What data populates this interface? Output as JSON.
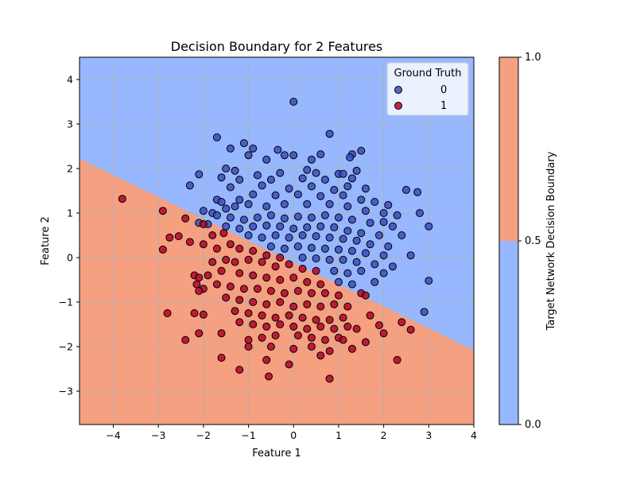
{
  "chart_data": {
    "type": "scatter",
    "title": "Decision Boundary for 2 Features",
    "xlabel": "Feature 1",
    "ylabel": "Feature 2",
    "xlim": [
      -4.75,
      4.0
    ],
    "ylim": [
      -3.75,
      4.5
    ],
    "x_ticks": [
      -4,
      -3,
      -2,
      -1,
      0,
      1,
      2,
      3,
      4
    ],
    "y_ticks": [
      -3,
      -2,
      -1,
      0,
      1,
      2,
      3,
      4
    ],
    "grid": true,
    "legend": {
      "title": "Ground Truth",
      "position": "top-right",
      "entries": [
        {
          "label": "0",
          "color": "#3b4cc0"
        },
        {
          "label": "1",
          "color": "#b40426"
        }
      ]
    },
    "decision_boundary": {
      "line": {
        "x0": -4.75,
        "y0": 2.22,
        "x1": 4.0,
        "y1": -2.08
      },
      "above_class": "0",
      "below_class": "1"
    },
    "region_colors": {
      "0": "#97b8ff",
      "1": "#f5a081"
    },
    "point_edge_color": "#000000",
    "colorbar": {
      "label": "Target Network Decision Boundary",
      "ticks": [
        "0.0",
        "0.5",
        "1.0"
      ],
      "lower_color": "#97b8ff",
      "upper_color": "#f5a081"
    },
    "series": [
      {
        "name": "0",
        "color": "#3b4cc0",
        "points": [
          [
            0.0,
            3.5
          ],
          [
            0.8,
            2.78
          ],
          [
            -1.7,
            2.7
          ],
          [
            -1.1,
            2.57
          ],
          [
            -0.35,
            2.42
          ],
          [
            1.5,
            2.4
          ],
          [
            -1.4,
            2.45
          ],
          [
            -0.9,
            2.45
          ],
          [
            -0.2,
            2.3
          ],
          [
            0.0,
            2.3
          ],
          [
            0.6,
            2.32
          ],
          [
            1.3,
            2.32
          ],
          [
            1.25,
            2.25
          ],
          [
            -0.6,
            2.2
          ],
          [
            -1.0,
            2.3
          ],
          [
            0.4,
            2.2
          ],
          [
            -2.1,
            1.87
          ],
          [
            -2.3,
            1.62
          ],
          [
            -1.5,
            2.0
          ],
          [
            -1.3,
            1.95
          ],
          [
            -0.8,
            1.85
          ],
          [
            -0.3,
            1.9
          ],
          [
            0.3,
            1.97
          ],
          [
            0.5,
            1.9
          ],
          [
            1.0,
            1.88
          ],
          [
            1.1,
            1.88
          ],
          [
            1.4,
            1.95
          ],
          [
            -1.6,
            1.8
          ],
          [
            -1.2,
            1.75
          ],
          [
            -0.5,
            1.75
          ],
          [
            0.2,
            1.78
          ],
          [
            0.7,
            1.75
          ],
          [
            1.3,
            1.78
          ],
          [
            -1.4,
            1.58
          ],
          [
            -0.7,
            1.62
          ],
          [
            -0.1,
            1.55
          ],
          [
            0.4,
            1.6
          ],
          [
            0.9,
            1.52
          ],
          [
            1.2,
            1.6
          ],
          [
            1.6,
            1.55
          ],
          [
            2.5,
            1.52
          ],
          [
            2.75,
            1.47
          ],
          [
            -1.7,
            1.3
          ],
          [
            -1.6,
            1.25
          ],
          [
            -1.2,
            1.3
          ],
          [
            -0.9,
            1.42
          ],
          [
            -0.4,
            1.4
          ],
          [
            0.1,
            1.42
          ],
          [
            0.6,
            1.38
          ],
          [
            1.1,
            1.4
          ],
          [
            1.5,
            1.3
          ],
          [
            1.8,
            1.25
          ],
          [
            2.1,
            1.18
          ],
          [
            -2.0,
            1.05
          ],
          [
            -1.8,
            1.0
          ],
          [
            -1.5,
            1.1
          ],
          [
            -1.3,
            1.15
          ],
          [
            -1.0,
            1.2
          ],
          [
            -0.6,
            1.15
          ],
          [
            -0.2,
            1.2
          ],
          [
            0.3,
            1.2
          ],
          [
            0.8,
            1.2
          ],
          [
            1.2,
            1.15
          ],
          [
            1.6,
            1.05
          ],
          [
            2.0,
            1.0
          ],
          [
            2.3,
            0.95
          ],
          [
            2.8,
            1.0
          ],
          [
            -2.1,
            0.78
          ],
          [
            -1.9,
            0.75
          ],
          [
            -1.7,
            0.95
          ],
          [
            -1.4,
            0.9
          ],
          [
            -1.1,
            0.85
          ],
          [
            -0.8,
            0.9
          ],
          [
            -0.5,
            0.95
          ],
          [
            -0.2,
            0.88
          ],
          [
            0.1,
            0.92
          ],
          [
            0.4,
            0.9
          ],
          [
            0.7,
            0.95
          ],
          [
            1.0,
            0.9
          ],
          [
            1.3,
            0.85
          ],
          [
            1.7,
            0.78
          ],
          [
            2.0,
            0.8
          ],
          [
            2.2,
            0.7
          ],
          [
            3.0,
            0.7
          ],
          [
            -1.5,
            0.7
          ],
          [
            -1.2,
            0.65
          ],
          [
            -0.9,
            0.7
          ],
          [
            -0.6,
            0.72
          ],
          [
            -0.3,
            0.7
          ],
          [
            0.0,
            0.65
          ],
          [
            0.3,
            0.68
          ],
          [
            0.6,
            0.7
          ],
          [
            0.9,
            0.68
          ],
          [
            1.2,
            0.6
          ],
          [
            1.5,
            0.55
          ],
          [
            1.9,
            0.5
          ],
          [
            2.4,
            0.5
          ],
          [
            -1.0,
            0.5
          ],
          [
            -0.7,
            0.45
          ],
          [
            -0.4,
            0.5
          ],
          [
            -0.1,
            0.45
          ],
          [
            0.2,
            0.5
          ],
          [
            0.5,
            0.48
          ],
          [
            0.8,
            0.45
          ],
          [
            1.1,
            0.42
          ],
          [
            1.4,
            0.38
          ],
          [
            1.7,
            0.3
          ],
          [
            2.1,
            0.25
          ],
          [
            -0.5,
            0.25
          ],
          [
            -0.2,
            0.2
          ],
          [
            0.1,
            0.25
          ],
          [
            0.4,
            0.22
          ],
          [
            0.7,
            0.2
          ],
          [
            1.0,
            0.18
          ],
          [
            1.3,
            0.15
          ],
          [
            1.6,
            0.1
          ],
          [
            2.0,
            0.05
          ],
          [
            2.6,
            0.05
          ],
          [
            0.2,
            0.0
          ],
          [
            0.5,
            -0.02
          ],
          [
            0.8,
            -0.05
          ],
          [
            1.1,
            -0.05
          ],
          [
            1.4,
            -0.1
          ],
          [
            1.8,
            -0.15
          ],
          [
            2.2,
            -0.2
          ],
          [
            0.9,
            -0.3
          ],
          [
            1.2,
            -0.35
          ],
          [
            1.5,
            -0.3
          ],
          [
            2.0,
            -0.35
          ],
          [
            1.0,
            -0.55
          ],
          [
            1.3,
            -0.6
          ],
          [
            1.8,
            -0.55
          ],
          [
            3.0,
            -0.52
          ],
          [
            2.9,
            -1.22
          ]
        ]
      },
      {
        "name": "1",
        "color": "#b40426",
        "points": [
          [
            -3.8,
            1.32
          ],
          [
            -2.9,
            1.05
          ],
          [
            -2.4,
            0.88
          ],
          [
            -2.0,
            0.75
          ],
          [
            -2.55,
            0.48
          ],
          [
            -2.75,
            0.45
          ],
          [
            -2.9,
            0.18
          ],
          [
            -2.3,
            0.35
          ],
          [
            -1.8,
            0.5
          ],
          [
            -1.55,
            0.55
          ],
          [
            -2.0,
            0.3
          ],
          [
            -1.7,
            0.2
          ],
          [
            -1.4,
            0.3
          ],
          [
            -1.2,
            0.2
          ],
          [
            -0.9,
            0.15
          ],
          [
            -0.6,
            0.05
          ],
          [
            -0.3,
            0.0
          ],
          [
            -1.8,
            -0.1
          ],
          [
            -1.5,
            -0.05
          ],
          [
            -1.3,
            -0.1
          ],
          [
            -1.0,
            -0.05
          ],
          [
            -0.7,
            -0.1
          ],
          [
            -0.4,
            -0.2
          ],
          [
            -0.1,
            -0.15
          ],
          [
            0.2,
            -0.25
          ],
          [
            0.5,
            -0.3
          ],
          [
            -2.2,
            -0.4
          ],
          [
            -2.1,
            -0.45
          ],
          [
            -1.9,
            -0.4
          ],
          [
            -1.6,
            -0.3
          ],
          [
            -1.2,
            -0.35
          ],
          [
            -0.9,
            -0.4
          ],
          [
            -0.6,
            -0.45
          ],
          [
            -0.3,
            -0.5
          ],
          [
            0.0,
            -0.45
          ],
          [
            0.3,
            -0.55
          ],
          [
            0.6,
            -0.6
          ],
          [
            -2.15,
            -0.6
          ],
          [
            -2.0,
            -0.7
          ],
          [
            -1.7,
            -0.6
          ],
          [
            -1.4,
            -0.65
          ],
          [
            -1.1,
            -0.7
          ],
          [
            -0.8,
            -0.7
          ],
          [
            -0.5,
            -0.75
          ],
          [
            -0.2,
            -0.8
          ],
          [
            0.1,
            -0.75
          ],
          [
            0.4,
            -0.8
          ],
          [
            0.7,
            -0.8
          ],
          [
            1.0,
            -0.85
          ],
          [
            1.5,
            -0.8
          ],
          [
            1.6,
            -0.85
          ],
          [
            -2.1,
            -0.75
          ],
          [
            -1.5,
            -0.9
          ],
          [
            -1.2,
            -0.95
          ],
          [
            -0.9,
            -1.0
          ],
          [
            -0.6,
            -1.05
          ],
          [
            -0.3,
            -1.0
          ],
          [
            0.0,
            -1.1
          ],
          [
            0.3,
            -1.05
          ],
          [
            0.6,
            -1.1
          ],
          [
            0.9,
            -1.05
          ],
          [
            1.2,
            -1.1
          ],
          [
            -1.3,
            -1.2
          ],
          [
            -1.0,
            -1.25
          ],
          [
            -0.7,
            -1.3
          ],
          [
            -0.4,
            -1.35
          ],
          [
            -0.1,
            -1.3
          ],
          [
            0.2,
            -1.35
          ],
          [
            0.5,
            -1.4
          ],
          [
            0.8,
            -1.4
          ],
          [
            1.1,
            -1.35
          ],
          [
            1.7,
            -1.3
          ],
          [
            -2.2,
            -1.25
          ],
          [
            -2.0,
            -1.28
          ],
          [
            -2.8,
            -1.25
          ],
          [
            -1.2,
            -1.45
          ],
          [
            -0.9,
            -1.5
          ],
          [
            -0.6,
            -1.55
          ],
          [
            -0.3,
            -1.5
          ],
          [
            0.0,
            -1.55
          ],
          [
            0.3,
            -1.6
          ],
          [
            0.6,
            -1.55
          ],
          [
            0.9,
            -1.6
          ],
          [
            1.2,
            -1.55
          ],
          [
            1.4,
            -1.6
          ],
          [
            1.9,
            -1.52
          ],
          [
            2.4,
            -1.45
          ],
          [
            2.6,
            -1.62
          ],
          [
            -2.1,
            -1.7
          ],
          [
            -2.4,
            -1.85
          ],
          [
            -1.6,
            -1.7
          ],
          [
            -1.0,
            -1.85
          ],
          [
            -0.7,
            -1.8
          ],
          [
            -0.4,
            -1.75
          ],
          [
            0.1,
            -1.75
          ],
          [
            0.4,
            -1.8
          ],
          [
            0.7,
            -1.85
          ],
          [
            1.0,
            -1.8
          ],
          [
            1.1,
            -1.85
          ],
          [
            1.6,
            -1.9
          ],
          [
            2.0,
            -1.7
          ],
          [
            -1.0,
            -2.0
          ],
          [
            -0.5,
            -2.0
          ],
          [
            0.0,
            -2.05
          ],
          [
            0.4,
            -2.0
          ],
          [
            0.8,
            -2.1
          ],
          [
            1.3,
            -2.05
          ],
          [
            -1.6,
            -2.25
          ],
          [
            -0.6,
            -2.3
          ],
          [
            -0.1,
            -2.4
          ],
          [
            0.6,
            -2.2
          ],
          [
            2.3,
            -2.3
          ],
          [
            -1.2,
            -2.52
          ],
          [
            -0.55,
            -2.67
          ],
          [
            0.8,
            -2.72
          ]
        ]
      }
    ]
  }
}
